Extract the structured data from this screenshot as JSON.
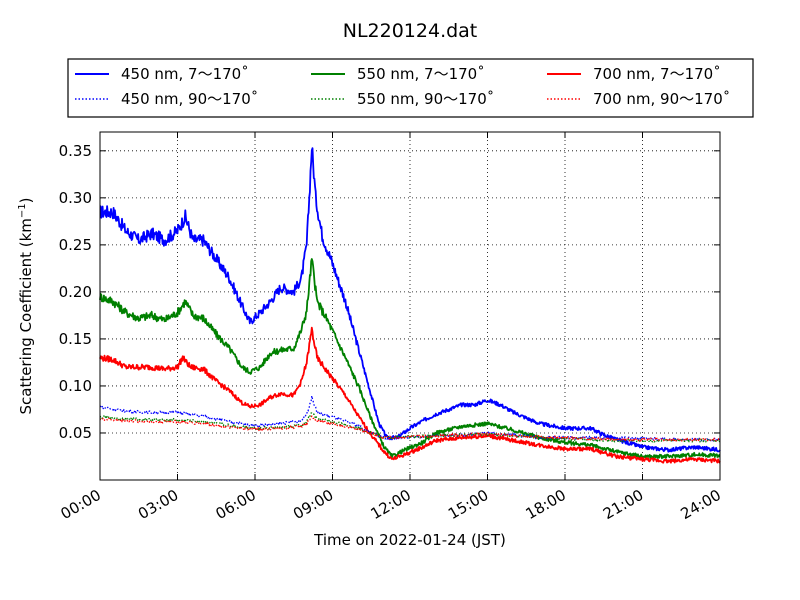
{
  "chart_data": {
    "type": "line",
    "title": "NL220124.dat",
    "xlabel": "Time on 2022-01-24 (JST)",
    "ylabel_main": "Scattering Coefficient (km",
    "ylabel_sup": "−1",
    "ylabel_close": ")",
    "xlim": [
      0,
      24
    ],
    "ylim": [
      0,
      0.37
    ],
    "xticks": [
      0,
      3,
      6,
      9,
      12,
      15,
      18,
      21,
      24
    ],
    "xtick_labels": [
      "00:00",
      "03:00",
      "06:00",
      "09:00",
      "12:00",
      "15:00",
      "18:00",
      "21:00",
      "24:00"
    ],
    "yticks": [
      0.05,
      0.1,
      0.15,
      0.2,
      0.25,
      0.3,
      0.35
    ],
    "ytick_labels": [
      "0.05",
      "0.10",
      "0.15",
      "0.20",
      "0.25",
      "0.30",
      "0.35"
    ],
    "grid": true,
    "legend_position": "top",
    "series": [
      {
        "name": "450 nm, 7～170˚",
        "color": "#0000ff",
        "style": "solid",
        "points": [
          [
            0,
            0.285
          ],
          [
            0.5,
            0.285
          ],
          [
            1,
            0.265
          ],
          [
            1.5,
            0.255
          ],
          [
            2,
            0.262
          ],
          [
            2.5,
            0.255
          ],
          [
            3,
            0.265
          ],
          [
            3.3,
            0.28
          ],
          [
            3.6,
            0.255
          ],
          [
            4,
            0.255
          ],
          [
            4.5,
            0.235
          ],
          [
            5,
            0.215
          ],
          [
            5.5,
            0.185
          ],
          [
            5.8,
            0.168
          ],
          [
            6.2,
            0.178
          ],
          [
            6.6,
            0.19
          ],
          [
            7,
            0.205
          ],
          [
            7.5,
            0.2
          ],
          [
            7.8,
            0.215
          ],
          [
            8,
            0.25
          ],
          [
            8.1,
            0.3
          ],
          [
            8.2,
            0.355
          ],
          [
            8.35,
            0.3
          ],
          [
            8.6,
            0.26
          ],
          [
            9,
            0.23
          ],
          [
            9.5,
            0.19
          ],
          [
            10,
            0.14
          ],
          [
            10.5,
            0.09
          ],
          [
            10.8,
            0.06
          ],
          [
            11.1,
            0.045
          ],
          [
            11.5,
            0.045
          ],
          [
            12,
            0.055
          ],
          [
            12.5,
            0.063
          ],
          [
            13,
            0.07
          ],
          [
            14,
            0.08
          ],
          [
            14.5,
            0.08
          ],
          [
            15,
            0.085
          ],
          [
            15.5,
            0.08
          ],
          [
            16,
            0.072
          ],
          [
            17,
            0.06
          ],
          [
            18,
            0.055
          ],
          [
            19,
            0.055
          ],
          [
            19.5,
            0.048
          ],
          [
            20,
            0.043
          ],
          [
            21,
            0.035
          ],
          [
            22,
            0.032
          ],
          [
            23,
            0.035
          ],
          [
            24,
            0.032
          ]
        ]
      },
      {
        "name": "550 nm, 7～170˚",
        "color": "#008000",
        "style": "solid",
        "points": [
          [
            0,
            0.195
          ],
          [
            0.5,
            0.19
          ],
          [
            1,
            0.178
          ],
          [
            1.5,
            0.172
          ],
          [
            2,
            0.175
          ],
          [
            2.5,
            0.17
          ],
          [
            3,
            0.178
          ],
          [
            3.3,
            0.19
          ],
          [
            3.6,
            0.175
          ],
          [
            4,
            0.172
          ],
          [
            4.5,
            0.155
          ],
          [
            5,
            0.14
          ],
          [
            5.5,
            0.12
          ],
          [
            5.8,
            0.115
          ],
          [
            6.2,
            0.12
          ],
          [
            6.6,
            0.135
          ],
          [
            7,
            0.138
          ],
          [
            7.5,
            0.14
          ],
          [
            7.8,
            0.16
          ],
          [
            8,
            0.18
          ],
          [
            8.2,
            0.235
          ],
          [
            8.4,
            0.19
          ],
          [
            8.8,
            0.17
          ],
          [
            9.5,
            0.13
          ],
          [
            10,
            0.1
          ],
          [
            10.5,
            0.065
          ],
          [
            11,
            0.035
          ],
          [
            11.3,
            0.025
          ],
          [
            11.8,
            0.032
          ],
          [
            12.5,
            0.04
          ],
          [
            13,
            0.05
          ],
          [
            14,
            0.057
          ],
          [
            15,
            0.06
          ],
          [
            16,
            0.053
          ],
          [
            17,
            0.045
          ],
          [
            18,
            0.04
          ],
          [
            19,
            0.037
          ],
          [
            20,
            0.03
          ],
          [
            21,
            0.025
          ],
          [
            22,
            0.025
          ],
          [
            23,
            0.027
          ],
          [
            24,
            0.026
          ]
        ]
      },
      {
        "name": "700 nm, 7～170˚",
        "color": "#ff0000",
        "style": "solid",
        "points": [
          [
            0,
            0.13
          ],
          [
            0.5,
            0.128
          ],
          [
            1,
            0.12
          ],
          [
            1.5,
            0.12
          ],
          [
            2,
            0.12
          ],
          [
            2.5,
            0.118
          ],
          [
            3,
            0.12
          ],
          [
            3.2,
            0.13
          ],
          [
            3.5,
            0.12
          ],
          [
            4,
            0.118
          ],
          [
            4.5,
            0.105
          ],
          [
            5,
            0.095
          ],
          [
            5.5,
            0.082
          ],
          [
            5.8,
            0.078
          ],
          [
            6.2,
            0.08
          ],
          [
            6.6,
            0.088
          ],
          [
            7,
            0.092
          ],
          [
            7.5,
            0.09
          ],
          [
            7.8,
            0.105
          ],
          [
            8,
            0.125
          ],
          [
            8.2,
            0.16
          ],
          [
            8.4,
            0.13
          ],
          [
            8.8,
            0.115
          ],
          [
            9.5,
            0.09
          ],
          [
            10,
            0.068
          ],
          [
            10.5,
            0.048
          ],
          [
            11,
            0.03
          ],
          [
            11.3,
            0.022
          ],
          [
            11.8,
            0.027
          ],
          [
            12.5,
            0.035
          ],
          [
            13,
            0.042
          ],
          [
            14,
            0.045
          ],
          [
            15,
            0.047
          ],
          [
            16,
            0.042
          ],
          [
            17,
            0.037
          ],
          [
            18,
            0.033
          ],
          [
            19,
            0.033
          ],
          [
            20,
            0.025
          ],
          [
            21,
            0.022
          ],
          [
            22,
            0.02
          ],
          [
            23,
            0.022
          ],
          [
            24,
            0.02
          ]
        ]
      },
      {
        "name": "450 nm, 90～170˚",
        "color": "#0000ff",
        "style": "dotted",
        "points": [
          [
            0,
            0.078
          ],
          [
            1,
            0.073
          ],
          [
            2,
            0.072
          ],
          [
            3,
            0.072
          ],
          [
            4,
            0.068
          ],
          [
            5,
            0.062
          ],
          [
            6,
            0.058
          ],
          [
            7,
            0.06
          ],
          [
            7.8,
            0.063
          ],
          [
            8,
            0.07
          ],
          [
            8.2,
            0.088
          ],
          [
            8.4,
            0.072
          ],
          [
            9,
            0.067
          ],
          [
            10,
            0.058
          ],
          [
            10.5,
            0.05
          ],
          [
            11,
            0.045
          ],
          [
            12,
            0.045
          ],
          [
            13,
            0.047
          ],
          [
            14,
            0.048
          ],
          [
            15,
            0.05
          ],
          [
            16,
            0.048
          ],
          [
            17,
            0.045
          ],
          [
            18,
            0.045
          ],
          [
            19,
            0.045
          ],
          [
            20,
            0.045
          ],
          [
            21,
            0.044
          ],
          [
            22,
            0.043
          ],
          [
            23,
            0.043
          ],
          [
            24,
            0.043
          ]
        ]
      },
      {
        "name": "550 nm, 90～170˚",
        "color": "#008000",
        "style": "dotted",
        "points": [
          [
            0,
            0.067
          ],
          [
            1,
            0.065
          ],
          [
            2,
            0.064
          ],
          [
            3,
            0.064
          ],
          [
            4,
            0.062
          ],
          [
            5,
            0.058
          ],
          [
            6,
            0.055
          ],
          [
            7,
            0.056
          ],
          [
            7.8,
            0.058
          ],
          [
            8,
            0.062
          ],
          [
            8.2,
            0.072
          ],
          [
            8.4,
            0.065
          ],
          [
            9,
            0.062
          ],
          [
            10,
            0.055
          ],
          [
            10.5,
            0.05
          ],
          [
            11,
            0.045
          ],
          [
            12,
            0.046
          ],
          [
            13,
            0.047
          ],
          [
            14,
            0.048
          ],
          [
            15,
            0.049
          ],
          [
            16,
            0.047
          ],
          [
            17,
            0.045
          ],
          [
            18,
            0.044
          ],
          [
            19,
            0.043
          ],
          [
            20,
            0.042
          ],
          [
            21,
            0.042
          ],
          [
            22,
            0.042
          ],
          [
            23,
            0.042
          ],
          [
            24,
            0.042
          ]
        ]
      },
      {
        "name": "700 nm, 90～170˚",
        "color": "#ff0000",
        "style": "dotted",
        "points": [
          [
            0,
            0.065
          ],
          [
            1,
            0.063
          ],
          [
            2,
            0.062
          ],
          [
            3,
            0.062
          ],
          [
            4,
            0.06
          ],
          [
            5,
            0.056
          ],
          [
            6,
            0.054
          ],
          [
            7,
            0.055
          ],
          [
            7.8,
            0.057
          ],
          [
            8,
            0.06
          ],
          [
            8.2,
            0.068
          ],
          [
            8.4,
            0.063
          ],
          [
            9,
            0.06
          ],
          [
            10,
            0.054
          ],
          [
            10.5,
            0.05
          ],
          [
            11,
            0.045
          ],
          [
            12,
            0.046
          ],
          [
            13,
            0.047
          ],
          [
            14,
            0.048
          ],
          [
            15,
            0.049
          ],
          [
            16,
            0.047
          ],
          [
            17,
            0.046
          ],
          [
            18,
            0.045
          ],
          [
            19,
            0.044
          ],
          [
            20,
            0.043
          ],
          [
            21,
            0.043
          ],
          [
            22,
            0.043
          ],
          [
            23,
            0.043
          ],
          [
            24,
            0.043
          ]
        ]
      }
    ]
  },
  "legend": {
    "items": [
      {
        "label": "450 nm, 7～170˚",
        "color": "#0000ff",
        "style": "solid"
      },
      {
        "label": "550 nm, 7～170˚",
        "color": "#008000",
        "style": "solid"
      },
      {
        "label": "700 nm, 7～170˚",
        "color": "#ff0000",
        "style": "solid"
      },
      {
        "label": "450 nm, 90～170˚",
        "color": "#0000ff",
        "style": "dotted"
      },
      {
        "label": "550 nm, 90～170˚",
        "color": "#008000",
        "style": "dotted"
      },
      {
        "label": "700 nm, 90～170˚",
        "color": "#ff0000",
        "style": "dotted"
      }
    ]
  }
}
